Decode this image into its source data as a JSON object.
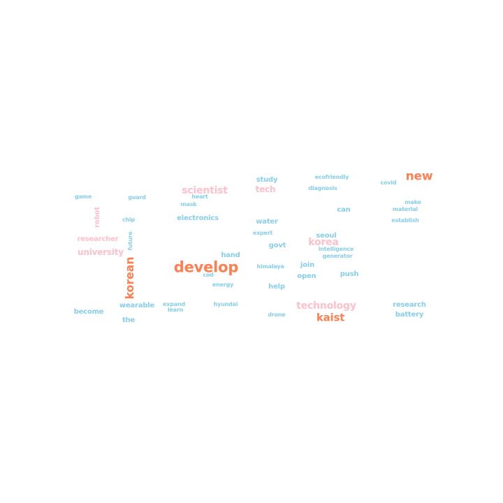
{
  "palette": {
    "primary": "#FF7F50",
    "secondary": "#FFC0CB",
    "tertiary": "#87CEEB"
  },
  "words": [
    {
      "text": "new",
      "tier": "primary",
      "weight": 6
    },
    {
      "text": "develop",
      "tier": "primary",
      "weight": 10
    },
    {
      "text": "korean",
      "tier": "primary",
      "weight": 7
    },
    {
      "text": "kaist",
      "tier": "primary",
      "weight": 6
    },
    {
      "text": "scientist",
      "tier": "secondary",
      "weight": 5
    },
    {
      "text": "korea",
      "tier": "secondary",
      "weight": 5
    },
    {
      "text": "technology",
      "tier": "secondary",
      "weight": 5
    },
    {
      "text": "university",
      "tier": "secondary",
      "weight": 4
    },
    {
      "text": "researcher",
      "tier": "secondary",
      "weight": 3
    },
    {
      "text": "robot",
      "tier": "secondary",
      "weight": 3
    },
    {
      "text": "tech",
      "tier": "secondary",
      "weight": 4
    },
    {
      "text": "study",
      "tier": "tertiary",
      "weight": 2
    },
    {
      "text": "ecofriendly",
      "tier": "tertiary",
      "weight": 1
    },
    {
      "text": "covid",
      "tier": "tertiary",
      "weight": 1
    },
    {
      "text": "diagnosis",
      "tier": "tertiary",
      "weight": 1
    },
    {
      "text": "game",
      "tier": "tertiary",
      "weight": 1
    },
    {
      "text": "guard",
      "tier": "tertiary",
      "weight": 1
    },
    {
      "text": "heart",
      "tier": "tertiary",
      "weight": 1
    },
    {
      "text": "mask",
      "tier": "tertiary",
      "weight": 1
    },
    {
      "text": "make",
      "tier": "tertiary",
      "weight": 1
    },
    {
      "text": "material",
      "tier": "tertiary",
      "weight": 1
    },
    {
      "text": "can",
      "tier": "tertiary",
      "weight": 2
    },
    {
      "text": "chip",
      "tier": "tertiary",
      "weight": 1
    },
    {
      "text": "electronics",
      "tier": "tertiary",
      "weight": 2
    },
    {
      "text": "water",
      "tier": "tertiary",
      "weight": 2
    },
    {
      "text": "establish",
      "tier": "tertiary",
      "weight": 1
    },
    {
      "text": "expert",
      "tier": "tertiary",
      "weight": 1
    },
    {
      "text": "seoul",
      "tier": "tertiary",
      "weight": 2
    },
    {
      "text": "future",
      "tier": "tertiary",
      "weight": 1
    },
    {
      "text": "govt",
      "tier": "tertiary",
      "weight": 2
    },
    {
      "text": "intelligence",
      "tier": "tertiary",
      "weight": 1
    },
    {
      "text": "generator",
      "tier": "tertiary",
      "weight": 1
    },
    {
      "text": "hand",
      "tier": "tertiary",
      "weight": 2
    },
    {
      "text": "himalaya",
      "tier": "tertiary",
      "weight": 1
    },
    {
      "text": "join",
      "tier": "tertiary",
      "weight": 2
    },
    {
      "text": "cod",
      "tier": "tertiary",
      "weight": 1
    },
    {
      "text": "open",
      "tier": "tertiary",
      "weight": 2
    },
    {
      "text": "push",
      "tier": "tertiary",
      "weight": 2
    },
    {
      "text": "energy",
      "tier": "tertiary",
      "weight": 1
    },
    {
      "text": "help",
      "tier": "tertiary",
      "weight": 2
    },
    {
      "text": "expand",
      "tier": "tertiary",
      "weight": 1
    },
    {
      "text": "learn",
      "tier": "tertiary",
      "weight": 1
    },
    {
      "text": "hyundai",
      "tier": "tertiary",
      "weight": 1
    },
    {
      "text": "research",
      "tier": "tertiary",
      "weight": 2
    },
    {
      "text": "become",
      "tier": "tertiary",
      "weight": 2
    },
    {
      "text": "wearable",
      "tier": "tertiary",
      "weight": 2
    },
    {
      "text": "drone",
      "tier": "tertiary",
      "weight": 1
    },
    {
      "text": "battery",
      "tier": "tertiary",
      "weight": 2
    },
    {
      "text": "the",
      "tier": "tertiary",
      "weight": 2
    }
  ]
}
